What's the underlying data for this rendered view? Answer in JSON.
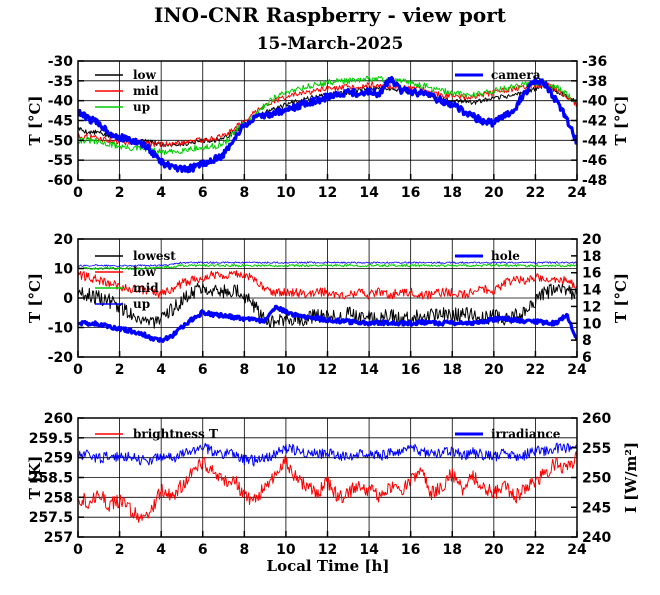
{
  "page": {
    "title": "INO-CNR Raspberry - view port",
    "date": "15-March-2025",
    "x_axis_label": "Local Time [h]"
  },
  "chart_data": [
    {
      "type": "line",
      "xlim": [
        0,
        24
      ],
      "xticks": [
        0,
        2,
        4,
        6,
        8,
        10,
        12,
        14,
        16,
        18,
        20,
        22,
        24
      ],
      "ylabel": "T [°C]",
      "ylim": [
        -60,
        -30
      ],
      "yticks": [
        -60,
        -55,
        -50,
        -45,
        -40,
        -35,
        -30
      ],
      "y2label": "T [°C]",
      "y2lim": [
        -48,
        -36
      ],
      "y2ticks": [
        -48,
        -46,
        -44,
        -42,
        -40,
        -38,
        -36
      ],
      "grid": true,
      "legend_left": "top-left",
      "legend_right": "top-right",
      "x": [
        0,
        0.5,
        1,
        1.5,
        2,
        2.5,
        3,
        3.5,
        4,
        4.5,
        5,
        5.5,
        6,
        6.5,
        7,
        7.5,
        8,
        8.5,
        9,
        9.5,
        10,
        10.5,
        11,
        11.5,
        12,
        12.5,
        13,
        13.5,
        14,
        14.5,
        15,
        15.5,
        16,
        16.5,
        17,
        17.5,
        18,
        18.5,
        19,
        19.5,
        20,
        20.5,
        21,
        21.5,
        22,
        22.5,
        23,
        23.5,
        24
      ],
      "series": [
        {
          "name": "low",
          "axis": "left",
          "color": "#000000",
          "noise": 0.6,
          "values": [
            -47,
            -48,
            -48,
            -49,
            -49.5,
            -50,
            -50,
            -50.5,
            -51,
            -51,
            -51,
            -50.5,
            -50,
            -50,
            -49.5,
            -48,
            -46,
            -44,
            -43,
            -42,
            -41,
            -40,
            -39.5,
            -39,
            -38.5,
            -38,
            -38,
            -37.5,
            -37,
            -37,
            -37,
            -37.5,
            -37.5,
            -38,
            -39,
            -39.5,
            -40,
            -40,
            -40.5,
            -40,
            -39.5,
            -39,
            -38.5,
            -38,
            -37,
            -36,
            -37.5,
            -39,
            -40
          ]
        },
        {
          "name": "mid",
          "axis": "left",
          "color": "#ff0000",
          "noise": 0.7,
          "values": [
            -49,
            -49,
            -49.5,
            -50,
            -50.5,
            -50.5,
            -50.5,
            -51,
            -51,
            -51,
            -50.5,
            -50,
            -50,
            -49.5,
            -49,
            -47,
            -45,
            -43,
            -41,
            -40,
            -39,
            -38.5,
            -38,
            -37.5,
            -37,
            -37,
            -36.5,
            -36.5,
            -36,
            -36,
            -36.5,
            -36.5,
            -37,
            -37,
            -38,
            -38.5,
            -39,
            -39,
            -39,
            -38.5,
            -38,
            -37.5,
            -37,
            -36.5,
            -36,
            -36,
            -37,
            -39,
            -41
          ]
        },
        {
          "name": "up",
          "axis": "left",
          "color": "#00cc00",
          "noise": 0.8,
          "values": [
            -50,
            -50,
            -50.5,
            -51,
            -51.5,
            -52,
            -52,
            -52.5,
            -53,
            -53,
            -52.5,
            -52,
            -52,
            -51.5,
            -51,
            -48,
            -46,
            -44,
            -41,
            -39,
            -38,
            -37,
            -36.5,
            -36,
            -35.5,
            -35,
            -35,
            -35,
            -34.5,
            -34.5,
            -35,
            -35,
            -35.5,
            -36,
            -37,
            -37.5,
            -38,
            -38.5,
            -38.5,
            -38,
            -37.5,
            -37,
            -36.5,
            -36,
            -35.5,
            -35.5,
            -36.5,
            -38.5,
            -40
          ]
        },
        {
          "name": "camera",
          "axis": "right",
          "color": "#0000ff",
          "noise": 0.35,
          "thick": true,
          "values": [
            -41.2,
            -41.8,
            -42.3,
            -43.2,
            -43.7,
            -44.0,
            -44.3,
            -45.0,
            -46.2,
            -46.7,
            -47.0,
            -46.8,
            -46.3,
            -46.0,
            -45.5,
            -43.8,
            -42.5,
            -41.8,
            -41.5,
            -41.2,
            -41.0,
            -40.6,
            -40.2,
            -40.0,
            -39.6,
            -39.4,
            -39.1,
            -39.3,
            -39.1,
            -39.3,
            -37.8,
            -38.9,
            -39.1,
            -39.3,
            -39.6,
            -40.0,
            -40.4,
            -41.0,
            -41.6,
            -42.1,
            -42.3,
            -41.5,
            -40.8,
            -39.2,
            -37.9,
            -38.4,
            -40.0,
            -41.8,
            -44.2
          ]
        }
      ]
    },
    {
      "type": "line",
      "xlim": [
        0,
        24
      ],
      "xticks": [
        0,
        2,
        4,
        6,
        8,
        10,
        12,
        14,
        16,
        18,
        20,
        22,
        24
      ],
      "ylabel": "T [°C]",
      "ylim": [
        -20,
        20
      ],
      "yticks": [
        -20,
        -10,
        0,
        10,
        20
      ],
      "y2label": "T [°C]",
      "y2lim": [
        6,
        20
      ],
      "y2ticks": [
        6,
        8,
        10,
        12,
        14,
        16,
        18,
        20
      ],
      "grid": true,
      "legend_left": "top-left",
      "legend_right": "top-right",
      "x": [
        0,
        0.5,
        1,
        1.5,
        2,
        2.5,
        3,
        3.5,
        4,
        4.5,
        5,
        5.5,
        6,
        6.5,
        7,
        7.5,
        8,
        8.5,
        9,
        9.5,
        10,
        10.5,
        11,
        11.5,
        12,
        12.5,
        13,
        13.5,
        14,
        14.5,
        15,
        15.5,
        16,
        16.5,
        17,
        17.5,
        18,
        18.5,
        19,
        19.5,
        20,
        20.5,
        21,
        21.5,
        22,
        22.5,
        23,
        23.5,
        24
      ],
      "series": [
        {
          "name": "lowest",
          "axis": "left",
          "color": "#000000",
          "noise": 2.5,
          "values": [
            2,
            1,
            0,
            -1,
            -3,
            -5,
            -7,
            -8,
            -8,
            -4,
            -1,
            2,
            4,
            3,
            2,
            3,
            1,
            -3,
            -7,
            -8,
            -8,
            -7,
            -7,
            -6,
            -6,
            -7,
            -5,
            -6,
            -6,
            -7,
            -6,
            -7,
            -7,
            -6,
            -6,
            -5,
            -6,
            -5,
            -6,
            -7,
            -6,
            -7,
            -6,
            -5,
            -1,
            2,
            3,
            2,
            1
          ]
        },
        {
          "name": "low",
          "axis": "left",
          "color": "#ff0000",
          "noise": 1.5,
          "values": [
            8,
            7,
            6,
            5,
            4,
            3,
            3,
            2,
            1,
            3,
            5,
            6,
            7,
            8,
            8,
            8,
            8,
            6,
            3,
            2,
            2,
            2,
            1,
            2,
            2,
            1,
            1,
            2,
            1,
            2,
            1,
            2,
            2,
            1,
            1,
            2,
            2,
            1,
            2,
            3,
            2,
            5,
            6,
            6,
            7,
            7,
            6,
            6,
            4
          ]
        },
        {
          "name": "mid",
          "axis": "left",
          "color": "#00cc00",
          "noise": 0.4,
          "values": [
            10,
            10,
            10,
            10,
            10,
            10,
            10,
            10,
            10.5,
            10.5,
            11,
            11,
            11,
            11,
            11,
            11,
            11,
            11,
            11,
            11,
            11,
            11,
            11,
            11,
            11,
            11,
            11,
            11,
            11,
            11,
            11,
            11,
            11,
            11,
            11,
            11,
            11,
            11,
            11,
            11,
            11,
            11,
            11,
            11,
            11,
            11,
            11,
            11,
            11
          ]
        },
        {
          "name": "up",
          "axis": "left",
          "color": "#0000ff",
          "noise": 0.3,
          "thin": true,
          "values": [
            11,
            11,
            11,
            11,
            11,
            11,
            11,
            11,
            11,
            11.5,
            12,
            12,
            12,
            12,
            12,
            12,
            12,
            12,
            12,
            12,
            12,
            12,
            12,
            12,
            12,
            12,
            12,
            12,
            12,
            12,
            12,
            12,
            12,
            12,
            12,
            12,
            12,
            12,
            12,
            12,
            12,
            12,
            12,
            12,
            12,
            12,
            12,
            12,
            12
          ]
        },
        {
          "name": "hole",
          "axis": "right",
          "color": "#0000ff",
          "noise": 0.25,
          "thick": true,
          "values": [
            10.1,
            10.0,
            9.9,
            9.6,
            9.4,
            9.1,
            8.8,
            8.3,
            8.0,
            8.5,
            9.5,
            10.5,
            11.3,
            11.0,
            10.9,
            10.7,
            10.5,
            10.4,
            10.3,
            11.8,
            11.4,
            10.9,
            10.7,
            10.6,
            10.4,
            10.3,
            10.2,
            10.1,
            10.0,
            10.1,
            10.0,
            10.0,
            10.0,
            10.1,
            10.0,
            10.0,
            10.1,
            10.0,
            10.0,
            10.2,
            10.5,
            10.6,
            10.4,
            10.3,
            10.2,
            10.1,
            10.0,
            11.0,
            8.0
          ]
        }
      ]
    },
    {
      "type": "line",
      "xlim": [
        0,
        24
      ],
      "xticks": [
        0,
        2,
        4,
        6,
        8,
        10,
        12,
        14,
        16,
        18,
        20,
        22,
        24
      ],
      "ylabel": "T [K]",
      "ylim": [
        257,
        260
      ],
      "yticks": [
        257,
        257.5,
        258,
        258.5,
        259,
        259.5,
        260
      ],
      "y2label": "I [W/m²]",
      "y2lim": [
        240,
        260
      ],
      "y2ticks": [
        240,
        245,
        250,
        255,
        260
      ],
      "grid": true,
      "legend_left": "top-left",
      "legend_right": "top-right",
      "x": [
        0,
        0.5,
        1,
        1.5,
        2,
        2.5,
        3,
        3.5,
        4,
        4.5,
        5,
        5.5,
        6,
        6.5,
        7,
        7.5,
        8,
        8.5,
        9,
        9.5,
        10,
        10.5,
        11,
        11.5,
        12,
        12.5,
        13,
        13.5,
        14,
        14.5,
        15,
        15.5,
        16,
        16.5,
        17,
        17.5,
        18,
        18.5,
        19,
        19.5,
        20,
        20.5,
        21,
        21.5,
        22,
        22.5,
        23,
        23.5,
        24
      ],
      "series": [
        {
          "name": "brightness T",
          "axis": "left",
          "color": "#ff0000",
          "noise": 0.18,
          "values": [
            258.0,
            257.9,
            258.1,
            257.8,
            257.9,
            257.7,
            257.5,
            257.6,
            258.2,
            258.0,
            258.3,
            258.6,
            258.9,
            258.7,
            258.4,
            258.5,
            258.0,
            257.9,
            258.3,
            258.6,
            258.9,
            258.5,
            258.3,
            258.1,
            258.4,
            258.0,
            258.1,
            258.3,
            258.2,
            258.0,
            258.3,
            258.1,
            258.4,
            258.6,
            258.1,
            258.3,
            258.6,
            258.2,
            258.5,
            258.3,
            258.1,
            258.3,
            258.0,
            258.2,
            258.4,
            258.6,
            258.9,
            258.7,
            259.0
          ]
        },
        {
          "name": "irradiance",
          "axis": "right",
          "color": "#0000ff",
          "noise": 0.9,
          "values": [
            253.5,
            253.8,
            253.2,
            253.6,
            253.3,
            253.8,
            253.0,
            252.8,
            253.6,
            253.2,
            253.8,
            254.6,
            255.2,
            254.3,
            254.0,
            254.2,
            253.0,
            252.8,
            253.2,
            254.0,
            255.0,
            254.6,
            254.3,
            253.8,
            254.2,
            253.5,
            253.6,
            254.2,
            254.3,
            253.6,
            254.1,
            254.2,
            254.8,
            254.5,
            253.8,
            254.0,
            254.5,
            253.6,
            254.2,
            253.8,
            253.5,
            254.0,
            253.4,
            253.8,
            254.4,
            254.5,
            255.0,
            254.8,
            255.5
          ]
        }
      ]
    }
  ]
}
